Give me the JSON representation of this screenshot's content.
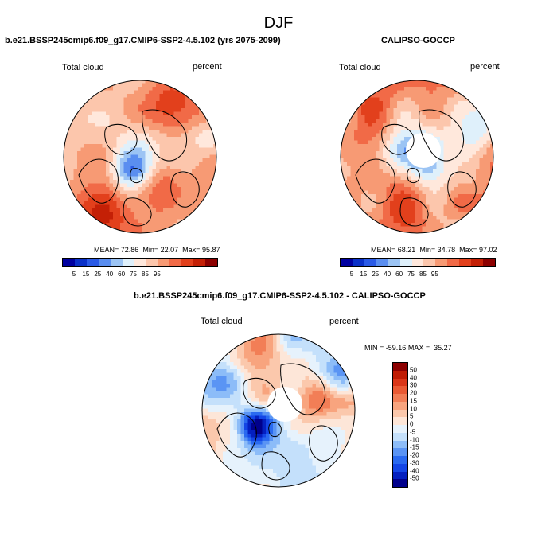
{
  "title": "DJF",
  "colors": {
    "absolute": [
      "#0000a0",
      "#0a30c8",
      "#2a5ae6",
      "#5a8ef0",
      "#9cc4f4",
      "#dff0fb",
      "#ffe8dc",
      "#fcc6ac",
      "#f79a74",
      "#f16a47",
      "#e2401c",
      "#c42006",
      "#8c0000"
    ],
    "difference": [
      "#00008c",
      "#0420c0",
      "#1446e6",
      "#2a6af0",
      "#5a94f4",
      "#8cbcf8",
      "#c4e0fb",
      "#e6f2fc",
      "#fde6d8",
      "#fbc8ac",
      "#f8a47e",
      "#f27e56",
      "#ea5a34",
      "#da3618",
      "#c01c04",
      "#8c0000"
    ]
  },
  "chart_data": [
    {
      "type": "heatmap",
      "projection": "north-polar-stereographic",
      "title": "b.e21.BSSP245cmip6.f09_g17.CMIP6-SSP2-4.5.102 (yrs 2075-2099)",
      "left_label": "Total cloud",
      "right_label": "percent",
      "stats": {
        "mean_label": "MEAN=",
        "mean": "72.86",
        "min_label": "Min=",
        "min": "22.07",
        "max_label": "Max=",
        "max": "95.87"
      },
      "colorbar_ticks": [
        "5",
        "15",
        "25",
        "40",
        "60",
        "75",
        "85",
        "95"
      ]
    },
    {
      "type": "heatmap",
      "projection": "north-polar-stereographic",
      "title": "CALIPSO-GOCCP",
      "left_label": "Total cloud",
      "right_label": "percent",
      "stats": {
        "mean_label": "MEAN=",
        "mean": "68.21",
        "min_label": "Min=",
        "min": "34.78",
        "max_label": "Max=",
        "max": "97.02"
      },
      "colorbar_ticks": [
        "5",
        "15",
        "25",
        "40",
        "60",
        "75",
        "85",
        "95"
      ]
    },
    {
      "type": "heatmap",
      "projection": "north-polar-stereographic",
      "title": "b.e21.BSSP245cmip6.f09_g17.CMIP6-SSP2-4.5.102 - CALIPSO-GOCCP",
      "left_label": "Total cloud",
      "right_label": "percent",
      "stats": {
        "min_label": "MIN =",
        "min": "-59.16",
        "max_label": "MAX =",
        "max": "35.27"
      },
      "colorbar_ticks": [
        "50",
        "40",
        "30",
        "20",
        "15",
        "10",
        "5",
        "0",
        "-5",
        "-10",
        "-15",
        "-20",
        "-30",
        "-40",
        "-50"
      ]
    }
  ]
}
